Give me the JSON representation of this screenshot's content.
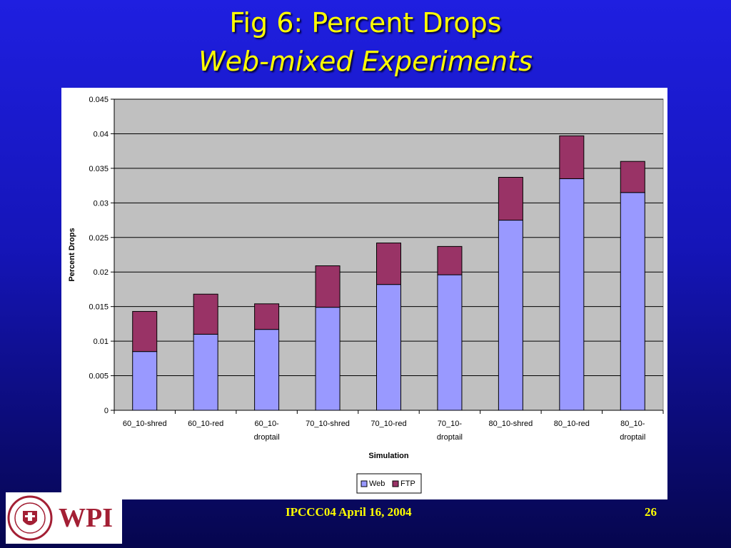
{
  "slide": {
    "title_line1": "Fig 6: Percent Drops",
    "title_line2": "Web-mixed Experiments",
    "footer": "IPCCC04  April 16, 2004",
    "page_number": "26",
    "logo_text": "WPI",
    "seal_text": "WORCESTER POLYTECHNIC INSTITUTE 1865"
  },
  "chart_data": {
    "type": "bar",
    "stacked": true,
    "categories": [
      [
        "60_10-shred"
      ],
      [
        "60_10-red"
      ],
      [
        "60_10-",
        "droptail"
      ],
      [
        "70_10-shred"
      ],
      [
        "70_10-red"
      ],
      [
        "70_10-",
        "droptail"
      ],
      [
        "80_10-shred"
      ],
      [
        "80_10-red"
      ],
      [
        "80_10-",
        "droptail"
      ]
    ],
    "series": [
      {
        "name": "Web",
        "color": "#9999ff",
        "values": [
          0.0085,
          0.011,
          0.0117,
          0.0149,
          0.0182,
          0.0196,
          0.0275,
          0.0335,
          0.0315
        ]
      },
      {
        "name": "FTP",
        "color": "#993366",
        "values": [
          0.0058,
          0.0058,
          0.0037,
          0.006,
          0.006,
          0.0041,
          0.0062,
          0.0062,
          0.0045
        ]
      }
    ],
    "xlabel": "Simulation",
    "ylabel": "Percent Drops",
    "ylim": [
      0,
      0.045
    ],
    "yticks": [
      "0",
      "0.005",
      "0.01",
      "0.015",
      "0.02",
      "0.025",
      "0.03",
      "0.035",
      "0.04",
      "0.045"
    ],
    "grid": true,
    "plot_background": "#c0c0c0",
    "legend_position": "bottom"
  }
}
